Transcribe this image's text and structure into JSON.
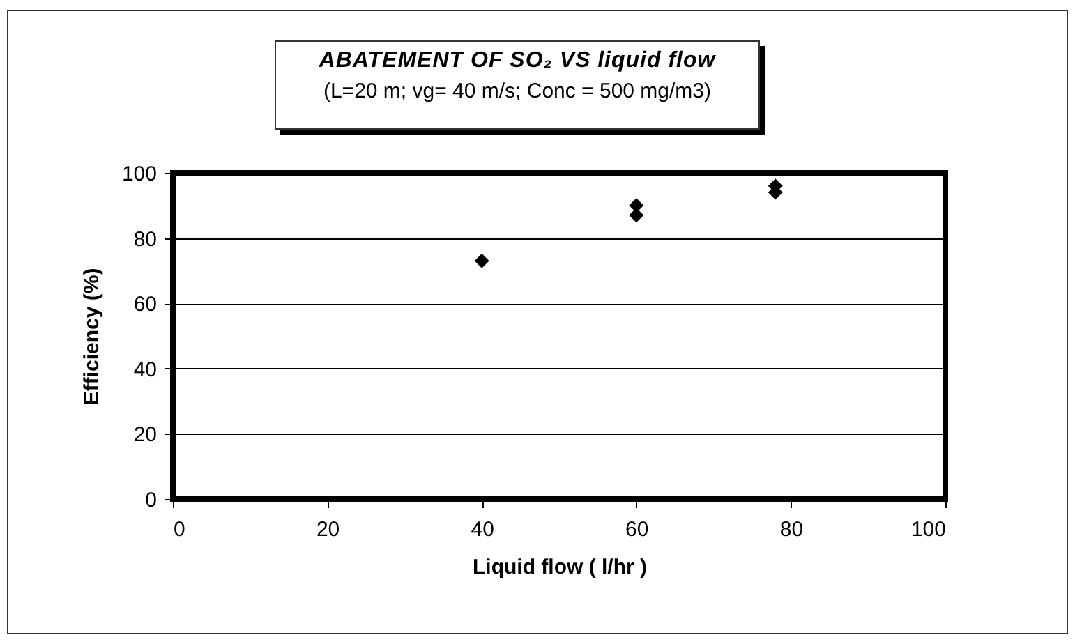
{
  "chart_data": {
    "type": "scatter",
    "title": "ABATEMENT OF SO₂ VS liquid flow",
    "subtitle": "(L=20 m; vg= 40 m/s; Conc = 500 mg/m3)",
    "xlabel": "Liquid flow ( l/hr )",
    "ylabel": "Efficiency (%)",
    "x": [
      40,
      60,
      60,
      78,
      78
    ],
    "series": [
      {
        "color": "#000000",
        "values": [
          73,
          90,
          87,
          96,
          94
        ]
      }
    ],
    "xlim": [
      0,
      100
    ],
    "xticks": [
      0,
      20,
      40,
      60,
      80,
      100
    ],
    "ylim": [
      0,
      100
    ],
    "yticks": [
      0,
      20,
      40,
      60,
      80,
      100
    ],
    "grid": "y",
    "marker": "diamond",
    "legend": false
  }
}
